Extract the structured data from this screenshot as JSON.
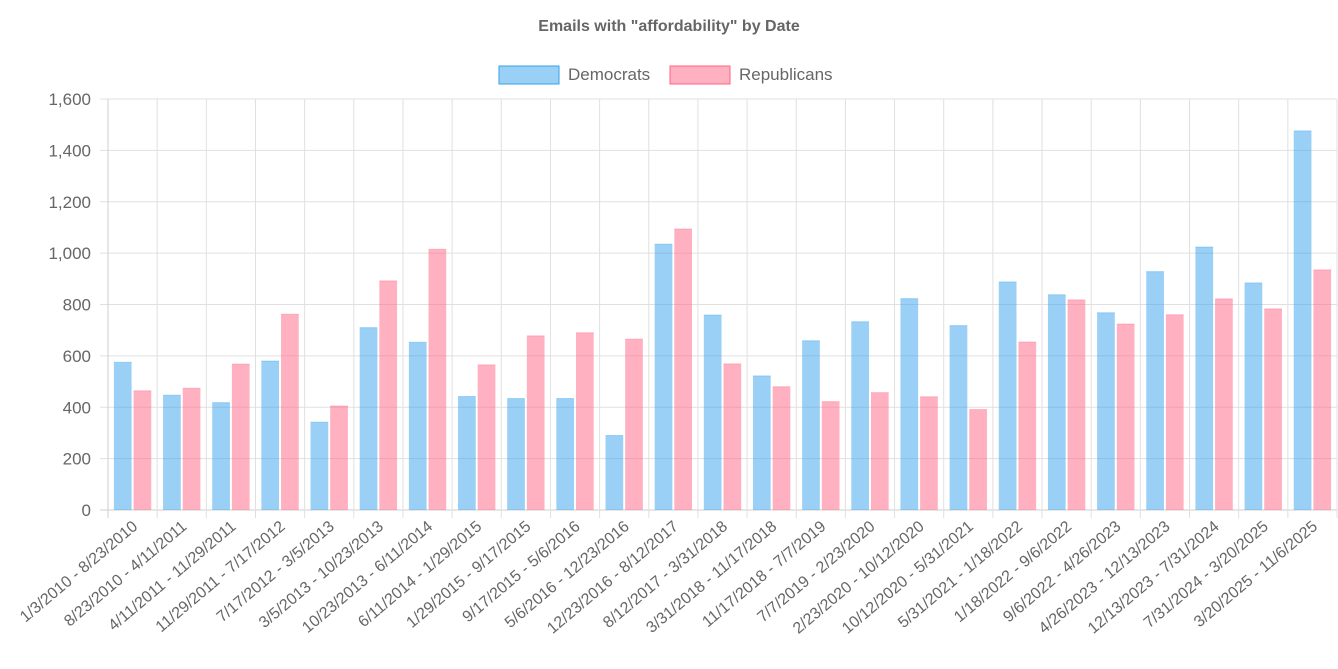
{
  "chart_data": {
    "type": "bar",
    "title": "Emails with \"affordability\" by Date",
    "xlabel": "",
    "ylabel": "",
    "ylim": [
      0,
      1600
    ],
    "yticks": [
      0,
      200,
      400,
      600,
      800,
      1000,
      1200,
      1400,
      1600
    ],
    "ytick_labels": [
      "0",
      "200",
      "400",
      "600",
      "800",
      "1,000",
      "1,200",
      "1,400",
      "1,600"
    ],
    "grid": true,
    "legend_position": "top-center",
    "categories": [
      "1/3/2010 - 8/23/2010",
      "8/23/2010 - 4/11/2011",
      "4/11/2011 - 11/29/2011",
      "11/29/2011 - 7/17/2012",
      "7/17/2012 - 3/5/2013",
      "3/5/2013 - 10/23/2013",
      "10/23/2013 - 6/11/2014",
      "6/11/2014 - 1/29/2015",
      "1/29/2015 - 9/17/2015",
      "9/17/2015 - 5/6/2016",
      "5/6/2016 - 12/23/2016",
      "12/23/2016 - 8/12/2017",
      "8/12/2017 - 3/31/2018",
      "3/31/2018 - 11/17/2018",
      "11/17/2018 - 7/7/2019",
      "7/7/2019 - 2/23/2020",
      "2/23/2020 - 10/12/2020",
      "10/12/2020 - 5/31/2021",
      "5/31/2021 - 1/18/2022",
      "1/18/2022 - 9/6/2022",
      "9/6/2022 - 4/26/2023",
      "4/26/2023 - 12/13/2023",
      "12/13/2023 - 7/31/2024",
      "7/31/2024 - 3/20/2025",
      "3/20/2025 - 11/6/2025"
    ],
    "series": [
      {
        "name": "Democrats",
        "color": "#36a2eb",
        "fill": "rgba(54,162,235,0.5)",
        "values": [
          575,
          447,
          418,
          580,
          342,
          710,
          653,
          442,
          434,
          434,
          290,
          1035,
          759,
          522,
          659,
          733,
          823,
          718,
          888,
          838,
          768,
          928,
          1024,
          884,
          1476
        ]
      },
      {
        "name": "Republicans",
        "color": "#ff6384",
        "fill": "rgba(255,99,132,0.5)",
        "values": [
          464,
          474,
          568,
          762,
          405,
          892,
          1015,
          565,
          678,
          690,
          665,
          1094,
          569,
          480,
          422,
          457,
          441,
          391,
          654,
          818,
          724,
          760,
          822,
          783,
          935
        ]
      }
    ]
  }
}
